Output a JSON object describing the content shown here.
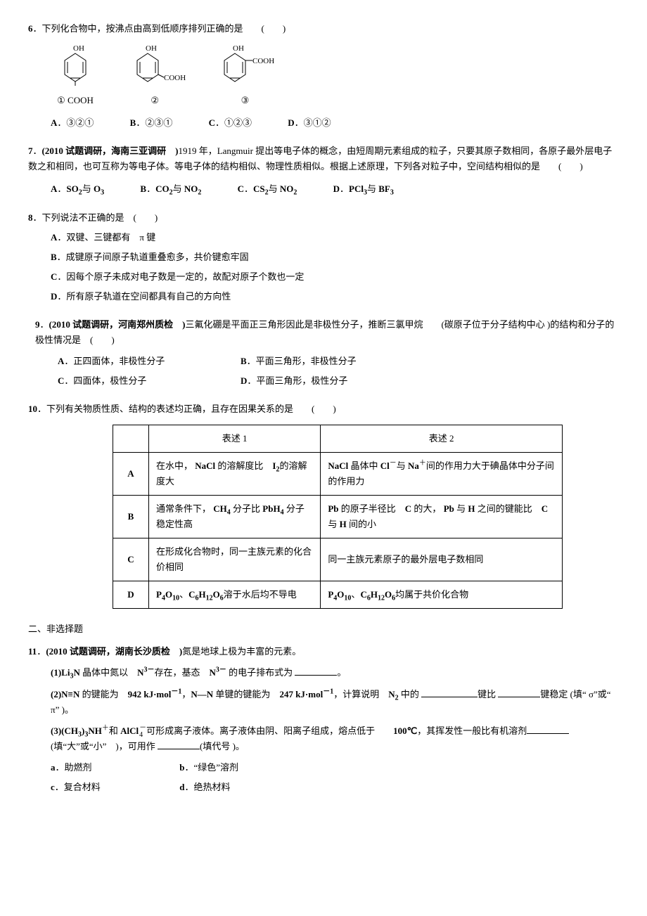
{
  "q6": {
    "num": "6",
    "stem": "．下列化合物中，按沸点由高到低顺序排列正确的是　　(　　)",
    "mol_labels": [
      "①",
      "②",
      "③"
    ],
    "mol_oh": "OH",
    "mol_cooh": "COOH",
    "options": [
      {
        "label": "A",
        "text": "．③②①"
      },
      {
        "label": "B",
        "text": "．②③①"
      },
      {
        "label": "C",
        "text": "．①②③"
      },
      {
        "label": "D",
        "text": "．③①②"
      }
    ]
  },
  "q7": {
    "num": "7",
    "stem_prefix": "．",
    "source": "(2010 试题调研，海南三亚调研　)",
    "stem_body": "1919 年，Langmuir 提出等电子体的概念，由短周期元素组成的粒子，只要其原子数相同，各原子最外层电子数之和相同，也可互称为等电子体。等电子体的结构相似、物理性质相似。根据上述原理，下列各对粒子中，空间结构相似的是　　(　　)",
    "options": [
      {
        "label": "A",
        "text_html": "．<b>SO<sub>2</sub></b>与 <b>O<sub>3</sub></b>"
      },
      {
        "label": "B",
        "text_html": "．<b>CO<sub>2</sub></b>与 <b>NO<sub>2</sub></b>"
      },
      {
        "label": "C",
        "text_html": "．<b>CS<sub>2</sub></b>与 <b>NO<sub>2</sub></b>"
      },
      {
        "label": "D",
        "text_html": "．<b>PCl<sub>3</sub></b>与 <b>BF<sub>3</sub></b>"
      }
    ]
  },
  "q8": {
    "num": "8",
    "stem": "．下列说法不正确的是　(　　)",
    "options": [
      {
        "label": "A",
        "text": "．双键、三键都有　π 键"
      },
      {
        "label": "B",
        "text": "．成键原子间原子轨道重叠愈多，共价键愈牢固"
      },
      {
        "label": "C",
        "text": "．因每个原子未成对电子数是一定的，故配对原子个数也一定"
      },
      {
        "label": "D",
        "text": "．所有原子轨道在空间都具有自己的方向性"
      }
    ]
  },
  "q9": {
    "num": "9",
    "stem_prefix": "．",
    "source": "(2010 试题调研，河南郑州质检　)",
    "stem_body": "三氟化硼是平面正三角形因此是非极性分子，推断三氯甲烷　　(碳原子位于分子结构中心 )的结构和分子的极性情况是　(　　)",
    "options": [
      {
        "label": "A",
        "text": "．正四面体，非极性分子"
      },
      {
        "label": "B",
        "text": "．平面三角形，非极性分子"
      },
      {
        "label": "C",
        "text": "．四面体，极性分子"
      },
      {
        "label": "D",
        "text": "．平面三角形，极性分子"
      }
    ]
  },
  "q10": {
    "num": "10",
    "stem": "．下列有关物质性质、结构的表述均正确，且存在因果关系的是　　(　　)",
    "table": {
      "headers": [
        "",
        "表述 1",
        "表述 2"
      ],
      "rows": [
        {
          "label": "A",
          "c1_html": "在水中， <b>NaCl</b> 的溶解度比　<b>I<sub>2</sub></b>的溶解度大",
          "c2_html": "<b>NaCl</b> 晶体中 <b>Cl</b><sup>－</sup>与 <b>Na</b><sup>＋</sup>间的作用力大于碘晶体中分子间的作用力"
        },
        {
          "label": "B",
          "c1_html": "通常条件下， <b>CH<sub>4</sub></b> 分子比 <b>PbH<sub>4</sub></b> 分子稳定性高",
          "c2_html": "<b>Pb</b> 的原子半径比　<b>C</b> 的大， <b>Pb</b> 与 <b>H</b> 之间的键能比　<b>C</b> 与 <b>H</b> 间的小"
        },
        {
          "label": "C",
          "c1_html": "在形成化合物时，同一主族元素的化合价相同",
          "c2_html": "同一主族元素原子的最外层电子数相同"
        },
        {
          "label": "D",
          "c1_html": "<b>P<sub>4</sub>O<sub>10</sub></b>、<b>C<sub>6</sub>H<sub>12</sub>O<sub>6</sub></b>溶于水后均不导电",
          "c2_html": "<b>P<sub>4</sub>O<sub>10</sub></b>、<b>C<sub>6</sub>H<sub>12</sub>O<sub>6</sub></b>均属于共价化合物"
        }
      ]
    }
  },
  "section2": "二、非选择题",
  "q11": {
    "num": "11",
    "stem_prefix": "．",
    "source": "(2010 试题调研，湖南长沙质检　)",
    "stem_body": "氮是地球上极为丰富的元素。",
    "sub1_html": "<b>(1)Li<sub>3</sub>N</b> 晶体中氮以　<b>N<sup>3－</sup></b>存在，基态　<b>N<sup>3－</sup></b> 的电子排布式为 <span class=\"blank\" data-name=\"blank\" data-interactable=\"true\"></span>。",
    "sub2_html": "<b>(2)N≡N</b> 的键能为　<b>942 kJ·mol<sup>－1</sup></b>，<b>N—N</b> 单键的键能为　<b>247 kJ·mol<sup>－1</sup></b>，计算说明　<b>N<sub>2</sub></b> 中的 <span class=\"blank\" data-name=\"blank\" data-interactable=\"true\" style=\"min-width:80px\"></span>键比 <span class=\"blank\" data-name=\"blank\" data-interactable=\"true\" style=\"min-width:60px\"></span>键稳定 (填“ σ”或“ π” )。",
    "sub3_html": "<b>(3)(CH<sub>3</sub>)<sub>3</sub>NH</b><sup>＋</sup>和 <b>AlCl</b><span class=\"supsub\"><span>－</span><br><span>4</span></span>可形成离子液体。离子液体由阴、阳离子组成，熔点低于　　<b>100℃</b>，其挥发性一般比有机溶剂<span class=\"blank\" data-name=\"blank\" data-interactable=\"true\" style=\"min-width:60px\"></span>(填“大”或“小”　)，可用作 <span class=\"blank\" data-name=\"blank\" data-interactable=\"true\" style=\"min-width:60px\"></span>(填代号 )。",
    "sub_opts": [
      {
        "label": "a",
        "text": "．助燃剂"
      },
      {
        "label": "b",
        "text": "．“绿色”溶剂"
      },
      {
        "label": "c",
        "text": "．复合材料"
      },
      {
        "label": "d",
        "text": "．绝热材料"
      }
    ]
  },
  "colors": {
    "text": "#000000",
    "bg": "#ffffff",
    "border": "#000000"
  }
}
